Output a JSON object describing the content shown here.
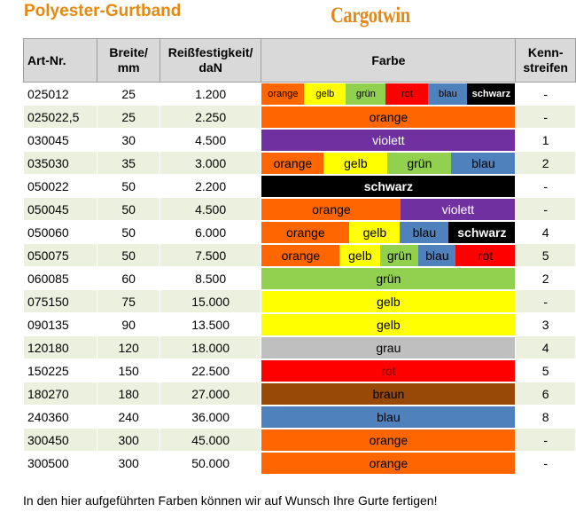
{
  "header": {
    "title": "Polyester-Gurtband",
    "brand": "Cargotwin"
  },
  "columns": {
    "art": "Art-Nr.",
    "breite": [
      "Breite/",
      "mm"
    ],
    "festigkeit": [
      "Reißfestigkeit/",
      "daN"
    ],
    "farbe": "Farbe",
    "kenn": [
      "Kenn-",
      "streifen"
    ]
  },
  "colors": {
    "orange": "#ff6600",
    "gelb": "#ffff00",
    "grün": "#92d050",
    "rot": "#ff0000",
    "blau": "#4f81bd",
    "schwarz": "#000000",
    "violett": "#7030a0",
    "grau": "#bfbfbf",
    "braun": "#984807"
  },
  "rows": [
    {
      "art": "025012",
      "breite": "25",
      "festigkeit": "1.200",
      "kenn": "-",
      "small": true,
      "segments": [
        {
          "name": "orange",
          "w": 48
        },
        {
          "name": "gelb",
          "w": 47
        },
        {
          "name": "grün",
          "w": 45
        },
        {
          "name": "rot",
          "w": 48
        },
        {
          "name": "blau",
          "w": 44
        },
        {
          "name": "schwarz",
          "w": 54
        }
      ]
    },
    {
      "art": "025022,5",
      "breite": "25",
      "festigkeit": "2.250",
      "kenn": "-",
      "segments": [
        {
          "name": "orange",
          "w": 286
        }
      ]
    },
    {
      "art": "030045",
      "breite": "30",
      "festigkeit": "4.500",
      "kenn": "1",
      "segments": [
        {
          "name": "violett",
          "w": 286
        }
      ]
    },
    {
      "art": "035030",
      "breite": "35",
      "festigkeit": "3.000",
      "kenn": "2",
      "segments": [
        {
          "name": "orange",
          "w": 70
        },
        {
          "name": "gelb",
          "w": 72
        },
        {
          "name": "grün",
          "w": 72
        },
        {
          "name": "blau",
          "w": 72
        }
      ]
    },
    {
      "art": "050022",
      "breite": "50",
      "festigkeit": "2.200",
      "kenn": "-",
      "segments": [
        {
          "name": "schwarz",
          "w": 286
        }
      ]
    },
    {
      "art": "050045",
      "breite": "50",
      "festigkeit": "4.500",
      "kenn": "-",
      "segments": [
        {
          "name": "orange",
          "w": 157
        },
        {
          "name": "violett",
          "w": 129
        }
      ]
    },
    {
      "art": "050060",
      "breite": "50",
      "festigkeit": "6.000",
      "kenn": "4",
      "segments": [
        {
          "name": "orange",
          "w": 99
        },
        {
          "name": "gelb",
          "w": 57
        },
        {
          "name": "blau",
          "w": 55
        },
        {
          "name": "schwarz",
          "w": 75
        }
      ]
    },
    {
      "art": "050075",
      "breite": "50",
      "festigkeit": "7.500",
      "kenn": "5",
      "segments": [
        {
          "name": "orange",
          "w": 88
        },
        {
          "name": "gelb",
          "w": 46
        },
        {
          "name": "grün",
          "w": 43
        },
        {
          "name": "blau",
          "w": 42
        },
        {
          "name": "rot",
          "w": 67
        }
      ]
    },
    {
      "art": "060085",
      "breite": "60",
      "festigkeit": "8.500",
      "kenn": "2",
      "segments": [
        {
          "name": "grün",
          "w": 286
        }
      ]
    },
    {
      "art": "075150",
      "breite": "75",
      "festigkeit": "15.000",
      "kenn": "-",
      "segments": [
        {
          "name": "gelb",
          "w": 286
        }
      ]
    },
    {
      "art": "090135",
      "breite": "90",
      "festigkeit": "13.500",
      "kenn": "3",
      "segments": [
        {
          "name": "gelb",
          "w": 286
        }
      ]
    },
    {
      "art": "120180",
      "breite": "120",
      "festigkeit": "18.000",
      "kenn": "4",
      "segments": [
        {
          "name": "grau",
          "w": 286
        }
      ]
    },
    {
      "art": "150225",
      "breite": "150",
      "festigkeit": "22.500",
      "kenn": "5",
      "segments": [
        {
          "name": "rot",
          "w": 286
        }
      ]
    },
    {
      "art": "180270",
      "breite": "180",
      "festigkeit": "27.000",
      "kenn": "6",
      "segments": [
        {
          "name": "braun",
          "w": 286
        }
      ]
    },
    {
      "art": "240360",
      "breite": "240",
      "festigkeit": "36.000",
      "kenn": "8",
      "segments": [
        {
          "name": "blau",
          "w": 286
        }
      ]
    },
    {
      "art": "300450",
      "breite": "300",
      "festigkeit": "45.000",
      "kenn": "-",
      "segments": [
        {
          "name": "orange",
          "w": 286
        }
      ]
    },
    {
      "art": "300500",
      "breite": "300",
      "festigkeit": "50.000",
      "kenn": "-",
      "segments": [
        {
          "name": "orange",
          "w": 286
        }
      ]
    }
  ],
  "footer": "In den hier aufgeführten Farben können wir auf Wunsch Ihre Gurte fertigen!"
}
